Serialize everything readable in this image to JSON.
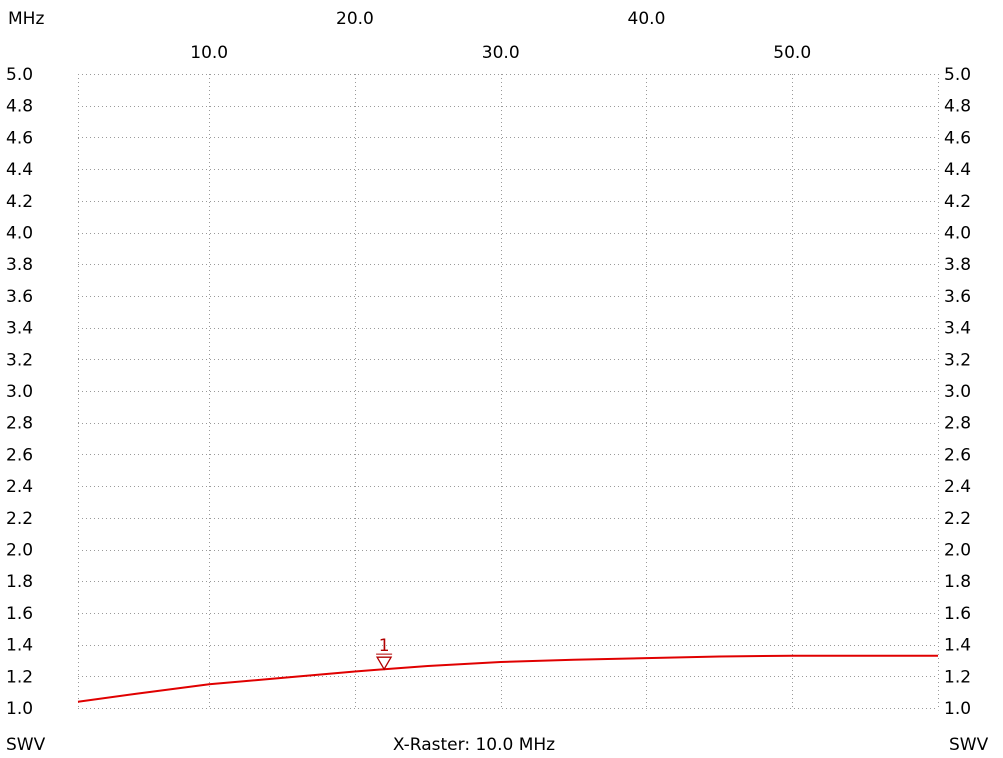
{
  "chart_data": {
    "type": "line",
    "x_unit_label": "MHz",
    "y_label_left": "SWV",
    "y_label_right": "SWV",
    "footer": "X-Raster: 10.0 MHz",
    "xlim": [
      1.0,
      60.0
    ],
    "ylim": [
      1.0,
      5.0
    ],
    "x_ticks_top_row": [
      20.0,
      40.0
    ],
    "x_ticks_bottom_row": [
      10.0,
      30.0,
      50.0
    ],
    "x_tick_labels_top_row": [
      "20.0",
      "40.0"
    ],
    "x_tick_labels_bottom_row": [
      "10.0",
      "30.0",
      "50.0"
    ],
    "y_ticks": [
      1.0,
      1.2,
      1.4,
      1.6,
      1.8,
      2.0,
      2.2,
      2.4,
      2.6,
      2.8,
      3.0,
      3.2,
      3.4,
      3.6,
      3.8,
      4.0,
      4.2,
      4.4,
      4.6,
      4.8,
      5.0
    ],
    "y_tick_labels": [
      "1.0",
      "1.2",
      "1.4",
      "1.6",
      "1.8",
      "2.0",
      "2.2",
      "2.4",
      "2.6",
      "2.8",
      "3.0",
      "3.2",
      "3.4",
      "3.6",
      "3.8",
      "4.0",
      "4.2",
      "4.4",
      "4.6",
      "4.8",
      "5.0"
    ],
    "grid": true,
    "grid_style": "dotted",
    "series": [
      {
        "color": "#e00000",
        "x": [
          1.0,
          5.0,
          10.0,
          15.0,
          20.0,
          22.0,
          25.0,
          30.0,
          35.0,
          40.0,
          45.0,
          50.0,
          55.0,
          60.0
        ],
        "y": [
          1.04,
          1.09,
          1.15,
          1.19,
          1.23,
          1.245,
          1.265,
          1.29,
          1.305,
          1.315,
          1.325,
          1.33,
          1.33,
          1.33
        ]
      }
    ],
    "markers": [
      {
        "label": "1",
        "x": 22.0,
        "y": 1.245,
        "color": "#b00000"
      }
    ]
  }
}
